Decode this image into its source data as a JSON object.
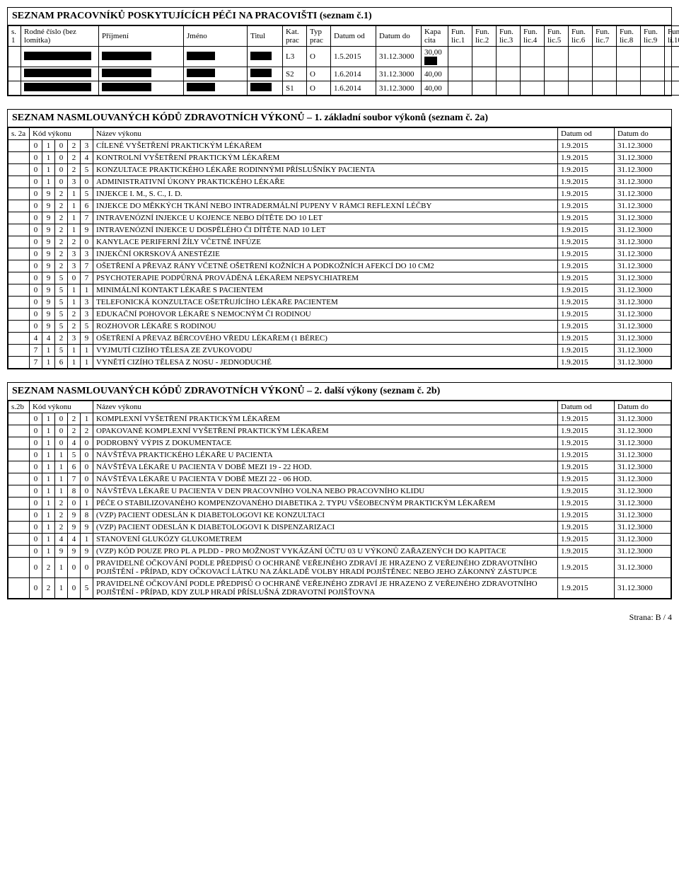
{
  "workers": {
    "title": "SEZNAM PRACOVNÍKŮ POSKYTUJÍCÍCH PÉČI NA PRACOVIŠTI (seznam č.1)",
    "headers": {
      "s1": "s. 1",
      "rodne": "Rodné číslo (bez lomítka)",
      "prijmeni": "Příjmení",
      "jmeno": "Jméno",
      "titul": "Titul",
      "kat": "Kat. prac",
      "typ": "Typ prac",
      "datumod": "Datum od",
      "datumdo": "Datum do",
      "kapa": "Kapa cita",
      "fun": [
        "Fun. lic.1",
        "Fun. lic.2",
        "Fun. lic.3",
        "Fun. lic.4",
        "Fun. lic.5",
        "Fun. lic.6",
        "Fun. lic.7",
        "Fun. lic.8",
        "Fun. lic.9",
        "Fun. li.10"
      ]
    },
    "rows": [
      {
        "kat": "L3",
        "typ": "O",
        "od": "1.5.2015",
        "do": "31.12.3000",
        "kapa": "30,00",
        "kapaRedact": true
      },
      {
        "kat": "S2",
        "typ": "O",
        "od": "1.6.2014",
        "do": "31.12.3000",
        "kapa": "40,00",
        "kapaRedact": false
      },
      {
        "kat": "S1",
        "typ": "O",
        "od": "1.6.2014",
        "do": "31.12.3000",
        "kapa": "40,00",
        "kapaRedact": false
      }
    ]
  },
  "codes2a": {
    "title": "SEZNAM NASMLOUVANÝCH KÓDŮ ZDRAVOTNÍCH VÝKONŮ – 1. základní soubor výkonů (seznam č. 2a)",
    "headers": {
      "s": "s. 2a",
      "kod": "Kód výkonu",
      "nazev": "Název výkonu",
      "od": "Datum od",
      "do": "Datum do"
    },
    "rows": [
      {
        "c": [
          "0",
          "1",
          "0",
          "2",
          "3"
        ],
        "n": "CÍLENÉ VYŠETŘENÍ PRAKTICKÝM LÉKAŘEM",
        "od": "1.9.2015",
        "do": "31.12.3000"
      },
      {
        "c": [
          "0",
          "1",
          "0",
          "2",
          "4"
        ],
        "n": "KONTROLNÍ VYŠETŘENÍ PRAKTICKÝM LÉKAŘEM",
        "od": "1.9.2015",
        "do": "31.12.3000"
      },
      {
        "c": [
          "0",
          "1",
          "0",
          "2",
          "5"
        ],
        "n": "KONZULTACE PRAKTICKÉHO LÉKAŘE RODINNÝMI PŘÍSLUŠNÍKY PACIENTA",
        "od": "1.9.2015",
        "do": "31.12.3000"
      },
      {
        "c": [
          "0",
          "1",
          "0",
          "3",
          "0"
        ],
        "n": "ADMINISTRATIVNÍ ÚKONY PRAKTICKÉHO LÉKAŘE",
        "od": "1.9.2015",
        "do": "31.12.3000"
      },
      {
        "c": [
          "0",
          "9",
          "2",
          "1",
          "5"
        ],
        "n": "INJEKCE I. M., S. C., I. D.",
        "od": "1.9.2015",
        "do": "31.12.3000"
      },
      {
        "c": [
          "0",
          "9",
          "2",
          "1",
          "6"
        ],
        "n": "INJEKCE DO MĚKKÝCH TKÁNÍ NEBO INTRADERMÁLNÍ PUPENY V RÁMCI REFLEXNÍ LÉČBY",
        "od": "1.9.2015",
        "do": "31.12.3000"
      },
      {
        "c": [
          "0",
          "9",
          "2",
          "1",
          "7"
        ],
        "n": "INTRAVENÓZNÍ INJEKCE U KOJENCE NEBO DÍTĚTE  DO 10 LET",
        "od": "1.9.2015",
        "do": "31.12.3000"
      },
      {
        "c": [
          "0",
          "9",
          "2",
          "1",
          "9"
        ],
        "n": "INTRAVENÓZNÍ INJEKCE U DOSPĚLÉHO ČI DÍTĚTE NAD 10 LET",
        "od": "1.9.2015",
        "do": "31.12.3000"
      },
      {
        "c": [
          "0",
          "9",
          "2",
          "2",
          "0"
        ],
        "n": "KANYLACE PERIFERNÍ ŽÍLY VČETNĚ INFÚZE",
        "od": "1.9.2015",
        "do": "31.12.3000"
      },
      {
        "c": [
          "0",
          "9",
          "2",
          "3",
          "3"
        ],
        "n": "INJEKČNÍ OKRSKOVÁ ANESTÉZIE",
        "od": "1.9.2015",
        "do": "31.12.3000"
      },
      {
        "c": [
          "0",
          "9",
          "2",
          "3",
          "7"
        ],
        "n": "OŠETŘENÍ A PŘEVAZ RÁNY VČETNĚ OŠETŘENÍ KOŽNÍCH A PODKOŽNÍCH AFEKCÍ DO 10 CM2",
        "od": "1.9.2015",
        "do": "31.12.3000"
      },
      {
        "c": [
          "0",
          "9",
          "5",
          "0",
          "7"
        ],
        "n": "PSYCHOTERAPIE PODPŮRNÁ PROVÁDĚNÁ LÉKAŘEM NEPSYCHIATREM",
        "od": "1.9.2015",
        "do": "31.12.3000"
      },
      {
        "c": [
          "0",
          "9",
          "5",
          "1",
          "1"
        ],
        "n": "MINIMÁLNÍ KONTAKT LÉKAŘE S PACIENTEM",
        "od": "1.9.2015",
        "do": "31.12.3000"
      },
      {
        "c": [
          "0",
          "9",
          "5",
          "1",
          "3"
        ],
        "n": "TELEFONICKÁ KONZULTACE OŠETŘUJÍCÍHO LÉKAŘE PACIENTEM",
        "od": "1.9.2015",
        "do": "31.12.3000"
      },
      {
        "c": [
          "0",
          "9",
          "5",
          "2",
          "3"
        ],
        "n": "EDUKAČNÍ POHOVOR LÉKAŘE S NEMOCNÝM ČI RODINOU",
        "od": "1.9.2015",
        "do": "31.12.3000"
      },
      {
        "c": [
          "0",
          "9",
          "5",
          "2",
          "5"
        ],
        "n": "ROZHOVOR LÉKAŘE S RODINOU",
        "od": "1.9.2015",
        "do": "31.12.3000"
      },
      {
        "c": [
          "4",
          "4",
          "2",
          "3",
          "9"
        ],
        "n": "OŠETŘENÍ A PŘEVAZ BÉRCOVÉHO VŘEDU LÉKAŘEM (1 BÉREC)",
        "od": "1.9.2015",
        "do": "31.12.3000"
      },
      {
        "c": [
          "7",
          "1",
          "5",
          "1",
          "1"
        ],
        "n": "VYJMUTÍ CIZÍHO TĚLESA ZE ZVUKOVODU",
        "od": "1.9.2015",
        "do": "31.12.3000"
      },
      {
        "c": [
          "7",
          "1",
          "6",
          "1",
          "1"
        ],
        "n": "VYNĚTÍ CIZÍHO TĚLESA Z NOSU - JEDNODUCHÉ",
        "od": "1.9.2015",
        "do": "31.12.3000"
      }
    ]
  },
  "codes2b": {
    "title": "SEZNAM NASMLOUVANÝCH KÓDŮ ZDRAVOTNÍCH VÝKONŮ – 2. další výkony (seznam č. 2b)",
    "headers": {
      "s": "s.2b",
      "kod": "Kód výkonu",
      "nazev": "Název výkonu",
      "od": "Datum od",
      "do": "Datum do"
    },
    "rows": [
      {
        "c": [
          "0",
          "1",
          "0",
          "2",
          "1"
        ],
        "n": "KOMPLEXNÍ VYŠETŘENÍ PRAKTICKÝM LÉKAŘEM",
        "od": "1.9.2015",
        "do": "31.12.3000"
      },
      {
        "c": [
          "0",
          "1",
          "0",
          "2",
          "2"
        ],
        "n": "OPAKOVANÉ KOMPLEXNÍ VYŠETŘENÍ PRAKTICKÝM LÉKAŘEM",
        "od": "1.9.2015",
        "do": "31.12.3000"
      },
      {
        "c": [
          "0",
          "1",
          "0",
          "4",
          "0"
        ],
        "n": "PODROBNÝ VÝPIS Z DOKUMENTACE",
        "od": "1.9.2015",
        "do": "31.12.3000"
      },
      {
        "c": [
          "0",
          "1",
          "1",
          "5",
          "0"
        ],
        "n": "NÁVŠTĚVA PRAKTICKÉHO LÉKAŘE U PACIENTA",
        "od": "1.9.2015",
        "do": "31.12.3000"
      },
      {
        "c": [
          "0",
          "1",
          "1",
          "6",
          "0"
        ],
        "n": "NÁVŠTĚVA LÉKAŘE U PACIENTA V DOBĚ MEZI 19 - 22 HOD.",
        "od": "1.9.2015",
        "do": "31.12.3000"
      },
      {
        "c": [
          "0",
          "1",
          "1",
          "7",
          "0"
        ],
        "n": "NÁVŠTĚVA LÉKAŘE U PACIENTA V DOBĚ MEZI 22 - 06 HOD.",
        "od": "1.9.2015",
        "do": "31.12.3000"
      },
      {
        "c": [
          "0",
          "1",
          "1",
          "8",
          "0"
        ],
        "n": "NÁVŠTĚVA LÉKAŘE U PACIENTA V DEN PRACOVNÍHO VOLNA NEBO PRACOVNÍHO KLIDU",
        "od": "1.9.2015",
        "do": "31.12.3000"
      },
      {
        "c": [
          "0",
          "1",
          "2",
          "0",
          "1"
        ],
        "n": "PÉČE O STABILIZOVANÉHO KOMPENZOVANÉHO DIABETIKA 2. TYPU VŠEOBECNÝM PRAKTICKÝM LÉKAŘEM",
        "od": "1.9.2015",
        "do": "31.12.3000"
      },
      {
        "c": [
          "0",
          "1",
          "2",
          "9",
          "8"
        ],
        "n": "(VZP) PACIENT ODESLÁN K DIABETOLOGOVI KE KONZULTACI",
        "od": "1.9.2015",
        "do": "31.12.3000"
      },
      {
        "c": [
          "0",
          "1",
          "2",
          "9",
          "9"
        ],
        "n": "(VZP) PACIENT ODESLÁN K DIABETOLOGOVI K DISPENZARIZACI",
        "od": "1.9.2015",
        "do": "31.12.3000"
      },
      {
        "c": [
          "0",
          "1",
          "4",
          "4",
          "1"
        ],
        "n": "STANOVENÍ GLUKÓZY GLUKOMETREM",
        "od": "1.9.2015",
        "do": "31.12.3000"
      },
      {
        "c": [
          "0",
          "1",
          "9",
          "9",
          "9"
        ],
        "n": "(VZP) KÓD POUZE PRO PL A PLDD - PRO MOŽNOST VYKÁZÁNÍ ÚČTU 03 U VÝKONŮ ZAŘAZENÝCH DO KAPITACE",
        "od": "1.9.2015",
        "do": "31.12.3000"
      },
      {
        "c": [
          "0",
          "2",
          "1",
          "0",
          "0"
        ],
        "n": "PRAVIDELNÉ OČKOVÁNÍ PODLE PŘEDPISŮ O OCHRANĚ VEŘEJNÉHO ZDRAVÍ JE HRAZENO Z VEŘEJNÉHO ZDRAVOTNÍHO POJIŠTĚNÍ - PŘÍPAD, KDY OČKOVACÍ LÁTKU NA ZÁKLADĚ VOLBY HRADÍ POJIŠTĚNEC NEBO JEHO ZÁKONNÝ ZÁSTUPCE",
        "od": "1.9.2015",
        "do": "31.12.3000"
      },
      {
        "c": [
          "0",
          "2",
          "1",
          "0",
          "5"
        ],
        "n": "PRAVIDELNÉ OČKOVÁNÍ PODLE PŘEDPISŮ O OCHRANĚ VEŘEJNÉHO ZDRAVÍ JE HRAZENO Z VEŘEJNÉHO ZDRAVOTNÍHO POJIŠTĚNÍ - PŘÍPAD, KDY ZULP HRADÍ PŘÍSLUŠNÁ ZDRAVOTNÍ POJIŠŤOVNA",
        "od": "1.9.2015",
        "do": "31.12.3000"
      }
    ]
  },
  "footer": "Strana: B / 4"
}
